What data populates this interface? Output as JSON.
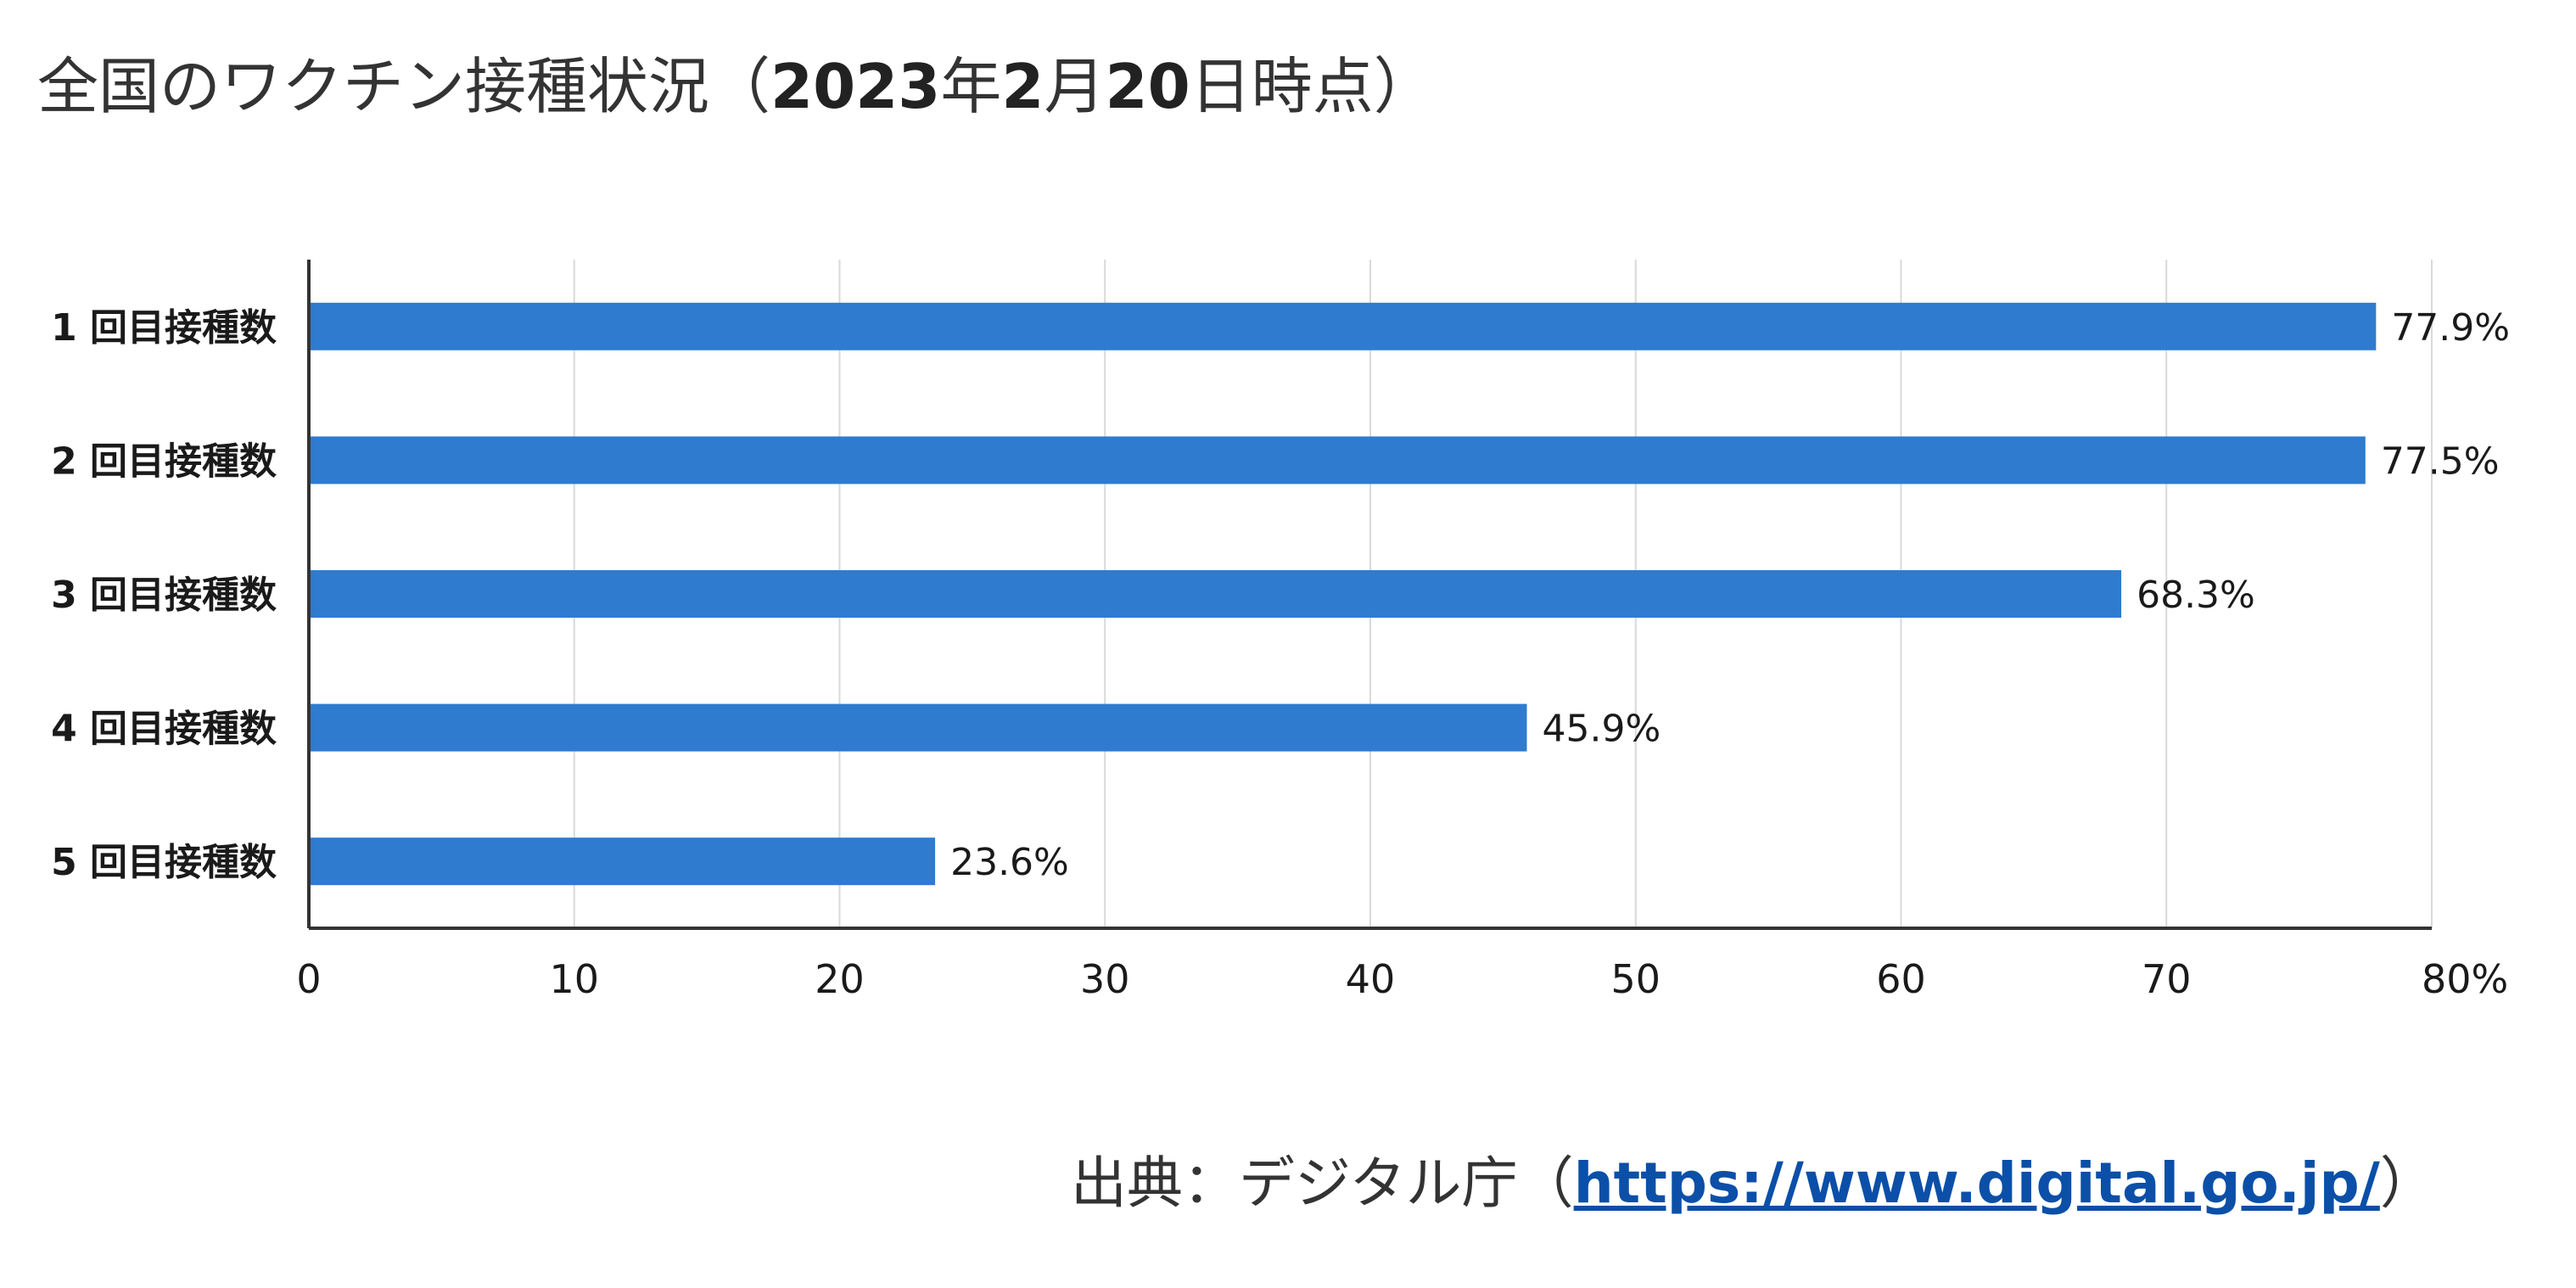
{
  "title": {
    "part1": "全国のワクチン接種状況（",
    "year": "2023",
    "year_unit": "年",
    "month": "2",
    "month_unit": "月",
    "day": "20",
    "day_suffix": "日時点）"
  },
  "source": {
    "prefix": "出典：デジタル庁（",
    "link_text": "https://www.digital.go.jp/",
    "suffix": "）"
  },
  "chart_data": {
    "type": "bar",
    "orientation": "horizontal",
    "categories": [
      "1回目接種数",
      "2回目接種数",
      "3回目接種数",
      "4回目接種数",
      "5回目接種数"
    ],
    "category_display": [
      "1 回目接種数",
      "2 回目接種数",
      "3 回目接種数",
      "4 回目接種数",
      "5 回目接種数"
    ],
    "values": [
      77.9,
      77.5,
      68.3,
      45.9,
      23.6
    ],
    "value_labels": [
      "77.9%",
      "77.5%",
      "68.3%",
      "45.9%",
      "23.6%"
    ],
    "xlim": [
      0,
      80
    ],
    "xticks": [
      0,
      10,
      20,
      30,
      40,
      50,
      60,
      70,
      80
    ],
    "xtick_labels": [
      "0",
      "10",
      "20",
      "30",
      "40",
      "50",
      "60",
      "70",
      "80%"
    ],
    "grid": true,
    "bar_color": "#2e7bcf",
    "grid_color": "#d9d9d9",
    "axis_color": "#333333"
  }
}
